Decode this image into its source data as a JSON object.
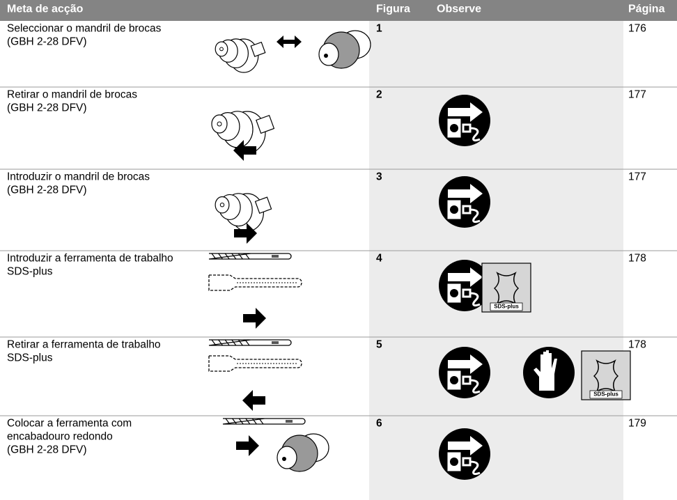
{
  "header": {
    "goal": "Meta de acção",
    "figure": "Figura",
    "observe": "Observe",
    "page": "Página"
  },
  "rows": [
    {
      "goal": [
        "Seleccionar o mandril de brocas",
        "(GBH 2-28 DFV)"
      ],
      "figure": "1",
      "page": "176"
    },
    {
      "goal": [
        "Retirar o mandril de brocas",
        "(GBH 2-28 DFV)"
      ],
      "figure": "2",
      "page": "177"
    },
    {
      "goal": [
        "Introduzir o mandril de brocas",
        "(GBH 2-28 DFV)"
      ],
      "figure": "3",
      "page": "177"
    },
    {
      "goal": [
        "Introduzir a ferramenta de trabalho",
        "SDS-plus"
      ],
      "figure": "4",
      "page": "178",
      "icon_label": "SDS-plus"
    },
    {
      "goal": [
        "Retirar a ferramenta de trabalho",
        "SDS-plus"
      ],
      "figure": "5",
      "page": "178",
      "icon_label": "SDS-plus"
    },
    {
      "goal": [
        "Colocar a ferramenta com",
        "encabadouro redondo",
        "(GBH 2-28 DFV)"
      ],
      "figure": "6",
      "page": "179"
    }
  ]
}
